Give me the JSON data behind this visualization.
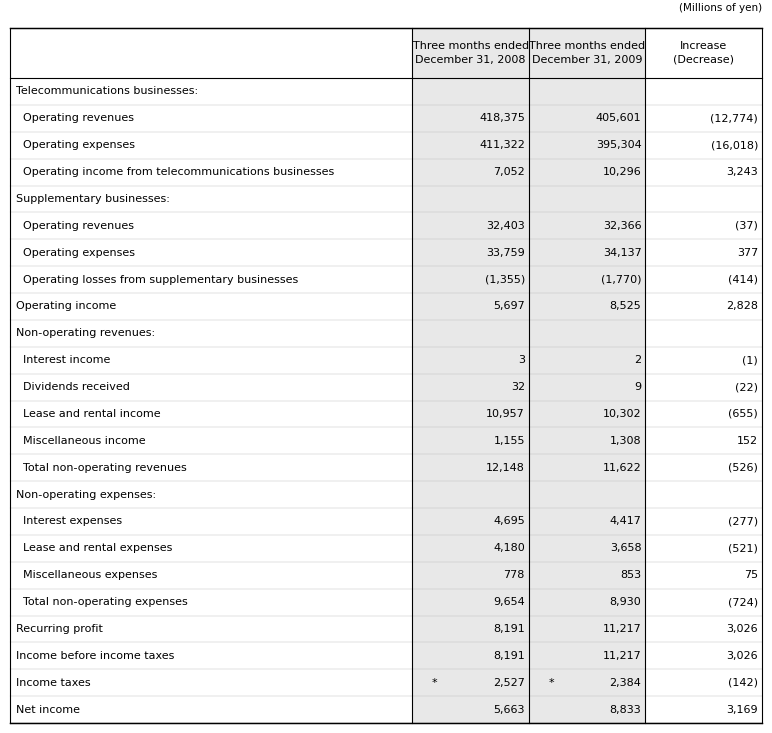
{
  "title_note": "(Millions of yen)",
  "col_headers": [
    "",
    "Three months ended\nDecember 31, 2008",
    "Three months ended\nDecember 31, 2009",
    "Increase\n(Decrease)"
  ],
  "rows": [
    {
      "label": "Telecommunications businesses:",
      "indent": 0,
      "v1": "",
      "v2": "",
      "v3": "",
      "header_row": true,
      "asterisk1": false,
      "asterisk2": false
    },
    {
      "label": "  Operating revenues",
      "indent": 0,
      "v1": "418,375",
      "v2": "405,601",
      "v3": "(12,774)",
      "header_row": false,
      "asterisk1": false,
      "asterisk2": false
    },
    {
      "label": "  Operating expenses",
      "indent": 0,
      "v1": "411,322",
      "v2": "395,304",
      "v3": "(16,018)",
      "header_row": false,
      "asterisk1": false,
      "asterisk2": false
    },
    {
      "label": "  Operating income from telecommunications businesses",
      "indent": 0,
      "v1": "7,052",
      "v2": "10,296",
      "v3": "3,243",
      "header_row": false,
      "asterisk1": false,
      "asterisk2": false
    },
    {
      "label": "Supplementary businesses:",
      "indent": 0,
      "v1": "",
      "v2": "",
      "v3": "",
      "header_row": true,
      "asterisk1": false,
      "asterisk2": false
    },
    {
      "label": "  Operating revenues",
      "indent": 0,
      "v1": "32,403",
      "v2": "32,366",
      "v3": "(37)",
      "header_row": false,
      "asterisk1": false,
      "asterisk2": false
    },
    {
      "label": "  Operating expenses",
      "indent": 0,
      "v1": "33,759",
      "v2": "34,137",
      "v3": "377",
      "header_row": false,
      "asterisk1": false,
      "asterisk2": false
    },
    {
      "label": "  Operating losses from supplementary businesses",
      "indent": 0,
      "v1": "(1,355)",
      "v2": "(1,770)",
      "v3": "(414)",
      "header_row": false,
      "asterisk1": false,
      "asterisk2": false
    },
    {
      "label": "Operating income",
      "indent": 0,
      "v1": "5,697",
      "v2": "8,525",
      "v3": "2,828",
      "header_row": false,
      "asterisk1": false,
      "asterisk2": false
    },
    {
      "label": "Non-operating revenues:",
      "indent": 0,
      "v1": "",
      "v2": "",
      "v3": "",
      "header_row": true,
      "asterisk1": false,
      "asterisk2": false
    },
    {
      "label": "  Interest income",
      "indent": 0,
      "v1": "3",
      "v2": "2",
      "v3": "(1)",
      "header_row": false,
      "asterisk1": false,
      "asterisk2": false
    },
    {
      "label": "  Dividends received",
      "indent": 0,
      "v1": "32",
      "v2": "9",
      "v3": "(22)",
      "header_row": false,
      "asterisk1": false,
      "asterisk2": false
    },
    {
      "label": "  Lease and rental income",
      "indent": 0,
      "v1": "10,957",
      "v2": "10,302",
      "v3": "(655)",
      "header_row": false,
      "asterisk1": false,
      "asterisk2": false
    },
    {
      "label": "  Miscellaneous income",
      "indent": 0,
      "v1": "1,155",
      "v2": "1,308",
      "v3": "152",
      "header_row": false,
      "asterisk1": false,
      "asterisk2": false
    },
    {
      "label": "  Total non-operating revenues",
      "indent": 0,
      "v1": "12,148",
      "v2": "11,622",
      "v3": "(526)",
      "header_row": false,
      "asterisk1": false,
      "asterisk2": false
    },
    {
      "label": "Non-operating expenses:",
      "indent": 0,
      "v1": "",
      "v2": "",
      "v3": "",
      "header_row": true,
      "asterisk1": false,
      "asterisk2": false
    },
    {
      "label": "  Interest expenses",
      "indent": 0,
      "v1": "4,695",
      "v2": "4,417",
      "v3": "(277)",
      "header_row": false,
      "asterisk1": false,
      "asterisk2": false
    },
    {
      "label": "  Lease and rental expenses",
      "indent": 0,
      "v1": "4,180",
      "v2": "3,658",
      "v3": "(521)",
      "header_row": false,
      "asterisk1": false,
      "asterisk2": false
    },
    {
      "label": "  Miscellaneous expenses",
      "indent": 0,
      "v1": "778",
      "v2": "853",
      "v3": "75",
      "header_row": false,
      "asterisk1": false,
      "asterisk2": false
    },
    {
      "label": "  Total non-operating expenses",
      "indent": 0,
      "v1": "9,654",
      "v2": "8,930",
      "v3": "(724)",
      "header_row": false,
      "asterisk1": false,
      "asterisk2": false
    },
    {
      "label": "Recurring profit",
      "indent": 0,
      "v1": "8,191",
      "v2": "11,217",
      "v3": "3,026",
      "header_row": false,
      "asterisk1": false,
      "asterisk2": false
    },
    {
      "label": "Income before income taxes",
      "indent": 0,
      "v1": "8,191",
      "v2": "11,217",
      "v3": "3,026",
      "header_row": false,
      "asterisk1": false,
      "asterisk2": false
    },
    {
      "label": "Income taxes",
      "indent": 0,
      "v1": "2,527",
      "v2": "2,384",
      "v3": "(142)",
      "header_row": false,
      "asterisk1": true,
      "asterisk2": true
    },
    {
      "label": "Net income",
      "indent": 0,
      "v1": "5,663",
      "v2": "8,833",
      "v3": "3,169",
      "header_row": false,
      "asterisk1": false,
      "asterisk2": false
    }
  ],
  "font_size": 8.0,
  "header_font_size": 8.0,
  "note_font_size": 7.5,
  "bg_color": "#ffffff",
  "border_color": "#000000",
  "shade_color": "#e8e8e8",
  "text_color": "#000000"
}
